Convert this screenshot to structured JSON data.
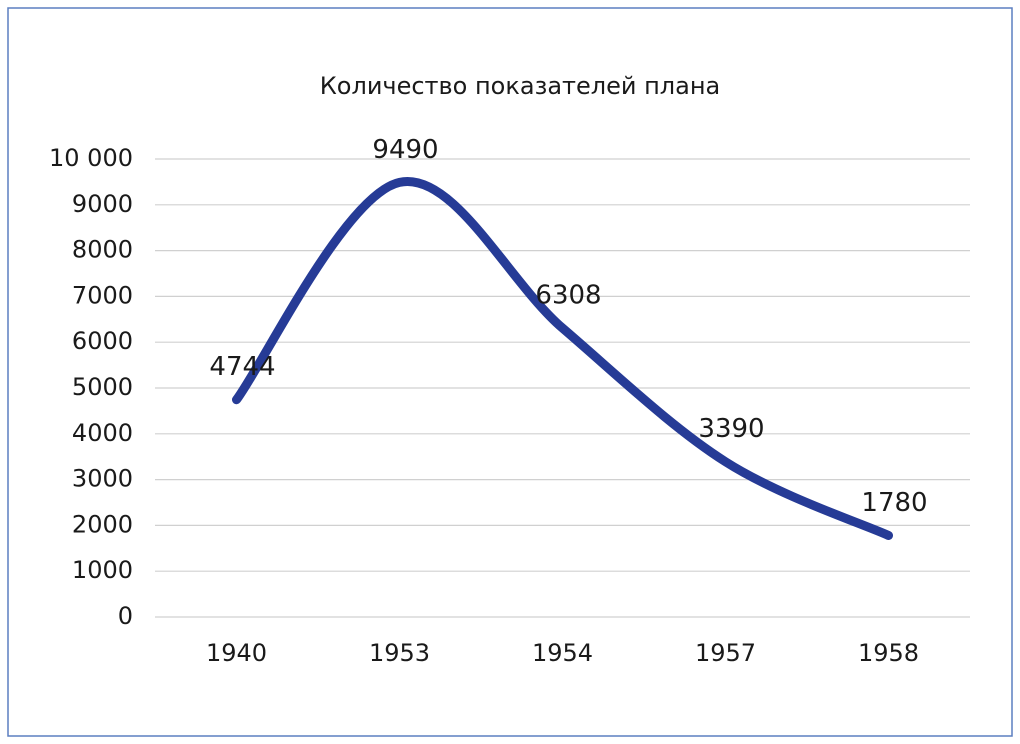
{
  "chart_data": {
    "type": "line",
    "title": "Количество показателей плана",
    "categories": [
      "1940",
      "1953",
      "1954",
      "1957",
      "1958"
    ],
    "series": [
      {
        "name": "Количество показателей плана",
        "color": "#263b96",
        "values": [
          4744,
          9490,
          6308,
          3390,
          1780
        ]
      }
    ],
    "ylim": [
      0,
      10000
    ],
    "yticks": [
      0,
      1000,
      2000,
      3000,
      4000,
      5000,
      6000,
      7000,
      8000,
      9000,
      {
        "value": 10000,
        "label": "10 000"
      }
    ],
    "grid": true,
    "smooth": true
  }
}
